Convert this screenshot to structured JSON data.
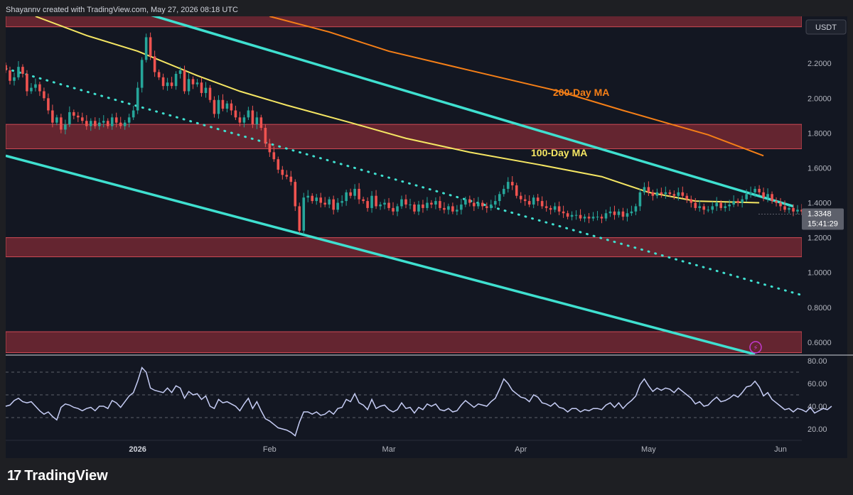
{
  "header": {
    "credit": "Shayannv created with TradingView.com, May 27, 2026 08:18 UTC"
  },
  "footer": {
    "brand": "TradingView",
    "brand_mark": "17"
  },
  "colors": {
    "background": "#131722",
    "up": "#26a69a",
    "down": "#ef5350",
    "ma100": "#f5e663",
    "ma200": "#f57f17",
    "channel": "#3fe0d0",
    "zone": "#a8323d",
    "rsi": "#c6cdf5"
  },
  "chart_data": [
    {
      "type": "candlestick",
      "currency_label": "USDT",
      "price_axis_ticks": [
        "2.2000",
        "2.0000",
        "1.8000",
        "1.6000",
        "1.4000",
        "1.2000",
        "1.0000",
        "0.8000",
        "0.6000"
      ],
      "ylim": [
        0.53,
        2.47
      ],
      "time_axis_labels": [
        {
          "label": "2026",
          "date": "2026-01-01"
        },
        {
          "label": "Feb",
          "date": "2026-02-01"
        },
        {
          "label": "Mar",
          "date": "2026-03-01"
        },
        {
          "label": "Apr",
          "date": "2026-04-01"
        },
        {
          "label": "May",
          "date": "2026-05-01"
        },
        {
          "label": "Jun",
          "date": "2026-06-01"
        }
      ],
      "xlim": [
        "2025-12-01",
        "2026-06-06"
      ],
      "current_price": "1.3348",
      "countdown": "15:41:29",
      "annotations": [
        "200-Day MA",
        "100-Day MA"
      ],
      "start_date": "2025-12-01",
      "closes": [
        2.16,
        2.1,
        2.12,
        2.18,
        2.14,
        2.04,
        2.06,
        2.08,
        2.04,
        2.0,
        1.93,
        1.86,
        1.89,
        1.82,
        1.85,
        1.92,
        1.9,
        1.89,
        1.87,
        1.84,
        1.87,
        1.84,
        1.86,
        1.87,
        1.84,
        1.89,
        1.86,
        1.84,
        1.86,
        1.89,
        1.93,
        2.06,
        2.22,
        2.35,
        2.24,
        2.15,
        2.12,
        2.07,
        2.09,
        2.07,
        2.14,
        2.16,
        2.04,
        2.11,
        2.08,
        2.09,
        2.03,
        2.06,
        1.99,
        1.91,
        1.99,
        1.94,
        1.97,
        1.93,
        1.89,
        1.86,
        1.89,
        1.93,
        1.85,
        1.89,
        1.83,
        1.74,
        1.69,
        1.65,
        1.59,
        1.56,
        1.55,
        1.52,
        1.38,
        1.24,
        1.43,
        1.44,
        1.41,
        1.43,
        1.4,
        1.39,
        1.42,
        1.36,
        1.4,
        1.41,
        1.46,
        1.44,
        1.48,
        1.42,
        1.41,
        1.37,
        1.44,
        1.38,
        1.39,
        1.4,
        1.37,
        1.35,
        1.38,
        1.42,
        1.39,
        1.39,
        1.35,
        1.39,
        1.37,
        1.4,
        1.39,
        1.41,
        1.37,
        1.36,
        1.38,
        1.35,
        1.36,
        1.39,
        1.42,
        1.4,
        1.38,
        1.4,
        1.38,
        1.37,
        1.39,
        1.41,
        1.45,
        1.48,
        1.52,
        1.5,
        1.44,
        1.42,
        1.41,
        1.39,
        1.43,
        1.41,
        1.38,
        1.37,
        1.36,
        1.38,
        1.35,
        1.34,
        1.32,
        1.33,
        1.33,
        1.31,
        1.32,
        1.31,
        1.32,
        1.32,
        1.31,
        1.34,
        1.35,
        1.33,
        1.35,
        1.32,
        1.34,
        1.35,
        1.38,
        1.46,
        1.49,
        1.46,
        1.44,
        1.46,
        1.45,
        1.46,
        1.45,
        1.44,
        1.46,
        1.44,
        1.42,
        1.4,
        1.37,
        1.38,
        1.36,
        1.36,
        1.38,
        1.4,
        1.37,
        1.38,
        1.39,
        1.41,
        1.4,
        1.42,
        1.45,
        1.46,
        1.48,
        1.46,
        1.43,
        1.45,
        1.41,
        1.4,
        1.38,
        1.36,
        1.37,
        1.35,
        1.36,
        1.35,
        1.34,
        1.36,
        1.33,
        1.34,
        1.35,
        1.34,
        1.3348
      ],
      "ma100": {
        "name": "100-Day MA",
        "points": [
          [
            "2025-12-08",
            2.47
          ],
          [
            "2025-12-20",
            2.36
          ],
          [
            "2026-01-01",
            2.27
          ],
          [
            "2026-01-15",
            2.13
          ],
          [
            "2026-01-25",
            2.04
          ],
          [
            "2026-02-05",
            1.96
          ],
          [
            "2026-02-20",
            1.86
          ],
          [
            "2026-03-05",
            1.77
          ],
          [
            "2026-03-20",
            1.69
          ],
          [
            "2026-04-05",
            1.62
          ],
          [
            "2026-04-20",
            1.55
          ],
          [
            "2026-05-01",
            1.46
          ],
          [
            "2026-05-12",
            1.41
          ],
          [
            "2026-05-27",
            1.4
          ]
        ]
      },
      "ma200": {
        "name": "200-Day MA",
        "points": [
          [
            "2026-02-01",
            2.47
          ],
          [
            "2026-02-15",
            2.38
          ],
          [
            "2026-03-01",
            2.27
          ],
          [
            "2026-03-20",
            2.16
          ],
          [
            "2026-04-10",
            2.04
          ],
          [
            "2026-04-25",
            1.93
          ],
          [
            "2026-05-05",
            1.86
          ],
          [
            "2026-05-15",
            1.79
          ],
          [
            "2026-05-28",
            1.67
          ]
        ]
      },
      "channel_upper": [
        [
          "2026-01-01",
          2.5
        ],
        [
          "2026-06-04",
          1.38
        ]
      ],
      "channel_lower": [
        [
          "2025-12-01",
          1.67
        ],
        [
          "2026-05-26",
          0.53
        ]
      ],
      "channel_mid_dotted": [
        [
          "2025-12-01",
          2.17
        ],
        [
          "2026-06-06",
          0.87
        ]
      ],
      "zones": [
        [
          2.41,
          2.49
        ],
        [
          1.71,
          1.85
        ],
        [
          1.09,
          1.2
        ],
        [
          0.54,
          0.66
        ]
      ]
    },
    {
      "type": "line",
      "panel": "RSI",
      "rsi_axis_ticks": [
        "80.00",
        "60.00",
        "40.00",
        "20.00"
      ],
      "ylim": [
        10,
        85
      ],
      "guides": [
        70,
        50,
        30
      ],
      "values": [
        40,
        41,
        45,
        47,
        44,
        43,
        44,
        40,
        36,
        33,
        35,
        31,
        28,
        39,
        42,
        41,
        39,
        38,
        36,
        38,
        39,
        36,
        40,
        40,
        38,
        45,
        43,
        39,
        44,
        49,
        52,
        62,
        74,
        70,
        56,
        54,
        53,
        52,
        56,
        52,
        58,
        56,
        47,
        53,
        50,
        51,
        46,
        49,
        40,
        38,
        46,
        43,
        44,
        42,
        40,
        36,
        42,
        47,
        38,
        44,
        36,
        29,
        27,
        24,
        21,
        20,
        19,
        17,
        14,
        26,
        35,
        35,
        33,
        35,
        32,
        33,
        36,
        33,
        38,
        39,
        46,
        44,
        51,
        43,
        41,
        37,
        46,
        38,
        40,
        41,
        37,
        35,
        37,
        43,
        38,
        39,
        34,
        39,
        37,
        42,
        40,
        42,
        37,
        36,
        38,
        35,
        36,
        41,
        45,
        42,
        39,
        42,
        41,
        40,
        44,
        47,
        55,
        64,
        60,
        54,
        51,
        48,
        47,
        44,
        50,
        48,
        43,
        42,
        40,
        43,
        39,
        38,
        35,
        38,
        38,
        35,
        37,
        36,
        38,
        38,
        37,
        41,
        43,
        39,
        43,
        38,
        42,
        45,
        49,
        59,
        64,
        58,
        53,
        56,
        54,
        56,
        55,
        52,
        56,
        53,
        50,
        47,
        42,
        44,
        40,
        41,
        45,
        48,
        44,
        45,
        47,
        50,
        48,
        52,
        57,
        58,
        62,
        57,
        49,
        52,
        46,
        43,
        40,
        37,
        38,
        35,
        38,
        37,
        35,
        39,
        34,
        36,
        38,
        37,
        40
      ]
    }
  ]
}
